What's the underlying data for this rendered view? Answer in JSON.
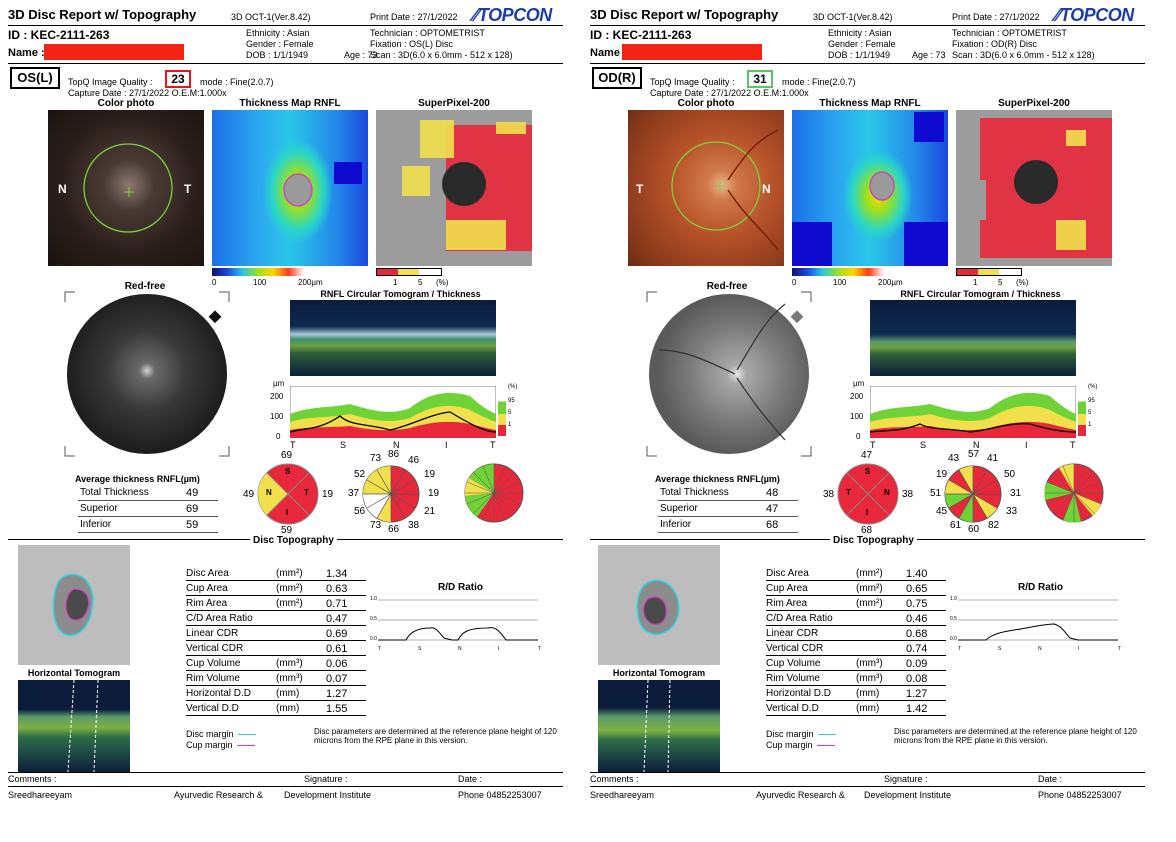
{
  "common": {
    "report_title": "3D Disc Report w/ Topography",
    "device": "3D OCT-1(Ver.8.42)",
    "print_date": "Print Date : 27/1/2022",
    "brand": "TOPCON",
    "id": "ID : KEC-2111-263",
    "name_label": "Name :",
    "ethnicity": "Ethnicity : Asian",
    "gender": "Gender : Female",
    "dob": "DOB : 1/1/1949",
    "age": "Age : 73",
    "technician": "Technician : OPTOMETRIST",
    "quality_label": "TopQ Image Quality :",
    "mode": "mode : Fine(2.0.7)",
    "capture": "Capture Date : 27/1/2022   O.E.M:1.000x",
    "color_photo": "Color photo",
    "thickness_map": "Thickness Map RNFL",
    "superpixel": "SuperPixel-200",
    "red_free": "Red-free",
    "circ_title": "RNFL Circular Tomogram / Thickness",
    "scale_0": "0",
    "scale_100": "100",
    "scale_200": "200µm",
    "sp_scale_1": "1",
    "sp_scale_5": "5",
    "sp_scale_pct": "(%)",
    "um": "µm",
    "y200": "200",
    "y100": "100",
    "y0": "0",
    "pct_label": "(%)",
    "pct_95": "95",
    "pct_5": "5",
    "pct_1": "1",
    "x_labels": [
      "T",
      "S",
      "N",
      "I",
      "T"
    ],
    "avg_title": "Average thickness RNFL(µm)",
    "total_label": "Total Thickness",
    "superior_label": "Superior",
    "inferior_label": "Inferior",
    "quad_S": "S",
    "quad_T": "T",
    "quad_N": "N",
    "quad_I": "I",
    "disc_topo": "Disc Topography",
    "horiz_tomo": "Horizontal Tomogram",
    "disc_margin": "Disc margin",
    "cup_margin": "Cup margin",
    "disc_note": "Disc parameters are determined at the reference plane height of 120 microns from the RPE plane in this version.",
    "rd_title": "R/D Ratio",
    "rd_y": [
      "1.0",
      "0.5",
      "0.0"
    ],
    "rd_x": [
      "T",
      "S",
      "N",
      "I",
      "T"
    ],
    "comments": "Comments :",
    "signature": "Signature :",
    "date": "Date :",
    "footer_name": "Sreedhareeyam",
    "footer_inst1": "Ayurvedic Research &",
    "footer_inst2": "Development Institute",
    "footer_phone": "Phone 04852253007",
    "param_labels": [
      "Disc Area",
      "Cup Area",
      "Rim Area",
      "C/D Area Ratio",
      "Linear CDR",
      "Vertical CDR",
      "Cup Volume",
      "Rim Volume",
      "Horizontal D.D",
      "Vertical D.D"
    ],
    "param_units": [
      "(mm²)",
      "(mm²)",
      "(mm²)",
      "",
      "",
      "",
      "(mm³)",
      "(mm³)",
      "(mm)",
      "(mm)"
    ],
    "colors": {
      "quality_red": "#e8131b",
      "quality_green": "#5cc75e",
      "sector_red": "#e8283a",
      "sector_yellow": "#f1e04c",
      "sector_green": "#6fd237",
      "disc_margin": "#2ad4e0",
      "cup_margin": "#d23cc2",
      "redaction": "#f32416"
    }
  },
  "left": {
    "eye": "OS(L)",
    "fixation": "Fixation : OS(L) Disc",
    "scan": "Scan : 3D(6.0 x 6.0mm - 512 x 128)",
    "quality": "23",
    "photo_left": "N",
    "photo_right": "T",
    "total": "49",
    "superior": "69",
    "inferior": "59",
    "quad": {
      "top": "69",
      "left": "49",
      "right": "19",
      "bottom": "59"
    },
    "clock": {
      "c1": "73",
      "c2": "86",
      "c3": "46",
      "c4": "52",
      "c5": "19",
      "c6": "37",
      "c7": "19",
      "c8": "56",
      "c9": "21",
      "c10": "73",
      "c11": "66",
      "c12": "38"
    },
    "params": [
      "1.34",
      "0.63",
      "0.71",
      "0.47",
      "0.69",
      "0.61",
      "0.06",
      "0.07",
      "1.27",
      "1.55"
    ]
  },
  "right": {
    "eye": "OD(R)",
    "fixation": "Fixation : OD(R) Disc",
    "scan": "Scan : 3D(6.0 x 6.0mm - 512 x 128)",
    "quality": "31",
    "photo_left": "T",
    "photo_right": "N",
    "total": "48",
    "superior": "47",
    "inferior": "68",
    "quad": {
      "top": "47",
      "left": "38",
      "right": "38",
      "bottom": "68"
    },
    "clock": {
      "c1": "43",
      "c2": "57",
      "c3": "41",
      "c4": "19",
      "c5": "50",
      "c6": "51",
      "c7": "31",
      "c8": "45",
      "c9": "33",
      "c10": "61",
      "c11": "60",
      "c12": "82"
    },
    "params": [
      "1.40",
      "0.65",
      "0.75",
      "0.46",
      "0.68",
      "0.74",
      "0.09",
      "0.08",
      "1.27",
      "1.42"
    ]
  }
}
